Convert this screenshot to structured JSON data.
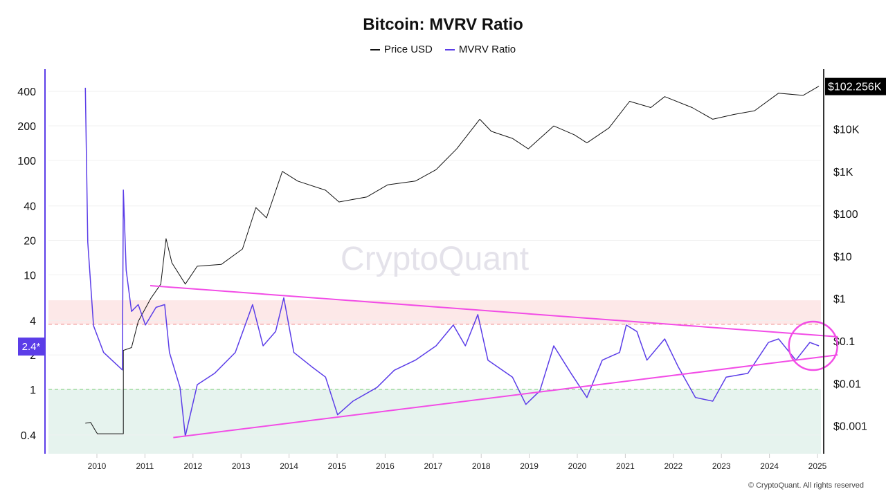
{
  "chart_data": {
    "type": "line",
    "title": "Bitcoin: MVRV Ratio",
    "watermark": "CryptoQuant",
    "footer": "© CryptoQuant. All rights reserved",
    "legend_position": "top-center",
    "grid": true,
    "x_ticks": [
      "2010",
      "2011",
      "2012",
      "2013",
      "2014",
      "2015",
      "2016",
      "2017",
      "2018",
      "2019",
      "2020",
      "2021",
      "2022",
      "2023",
      "2024",
      "2025"
    ],
    "left_axis": {
      "scale": "log",
      "ticks": [
        "400",
        "200",
        "100",
        "40",
        "20",
        "10",
        "4",
        "2",
        "1",
        "0.4"
      ],
      "tick_values": [
        400,
        200,
        100,
        40,
        20,
        10,
        4,
        2,
        1,
        0.4
      ],
      "current_label": "2.4*",
      "color": "#5b3de8"
    },
    "right_axis": {
      "scale": "log",
      "ticks": [
        "$10K",
        "$1K",
        "$100",
        "$10",
        "$1",
        "$0.1",
        "$0.01",
        "$0.001"
      ],
      "tick_values": [
        10000,
        1000,
        100,
        10,
        1,
        0.1,
        0.01,
        0.001
      ],
      "current_label": "$102.256K",
      "color": "#000000"
    },
    "zones": {
      "overvalued_band": [
        3.7,
        6.0
      ],
      "overvalued_line": 3.7,
      "undervalued_line": 1,
      "overvalued_color": "#fde8e8",
      "undervalued_color": "#e6f3ee"
    },
    "series": [
      {
        "name": "Price USD",
        "axis": "right",
        "color": "#111111",
        "x": [
          2009.76,
          2009.87,
          2009.96,
          2010.01,
          2010.55,
          2010.55,
          2010.72,
          2010.86,
          2011.12,
          2011.33,
          2011.44,
          2011.56,
          2011.84,
          2012.09,
          2012.59,
          2013.03,
          2013.31,
          2013.53,
          2013.86,
          2014.18,
          2014.76,
          2015.04,
          2015.62,
          2016.05,
          2016.63,
          2017.06,
          2017.49,
          2017.97,
          2018.21,
          2018.65,
          2018.98,
          2019.51,
          2019.94,
          2020.2,
          2020.66,
          2021.09,
          2021.53,
          2021.82,
          2022.39,
          2022.82,
          2023.26,
          2023.69,
          2024.19,
          2024.7,
          2025.03
        ],
        "y": [
          0.00115,
          0.0012,
          0.0008,
          0.00065,
          0.00065,
          0.06,
          0.07,
          0.29,
          1,
          2.2,
          26,
          7,
          2.2,
          5.8,
          6.4,
          14.8,
          140,
          80,
          1000,
          590,
          360,
          190,
          250,
          480,
          590,
          1100,
          3400,
          17000,
          8800,
          6000,
          3400,
          11800,
          7300,
          4700,
          10600,
          45000,
          32000,
          58000,
          32000,
          17000,
          22000,
          27000,
          70000,
          62000,
          102256
        ]
      },
      {
        "name": "MVRV Ratio",
        "axis": "left",
        "color": "#5b3de8",
        "x": [
          2009.76,
          2009.81,
          2009.93,
          2010.14,
          2010.53,
          2010.55,
          2010.61,
          2010.72,
          2010.86,
          2011.01,
          2011.23,
          2011.41,
          2011.51,
          2011.73,
          2011.84,
          2012.09,
          2012.45,
          2012.88,
          2013.24,
          2013.46,
          2013.72,
          2013.89,
          2014.1,
          2014.47,
          2014.76,
          2015.01,
          2015.33,
          2015.83,
          2016.19,
          2016.63,
          2017.06,
          2017.42,
          2017.67,
          2017.93,
          2018.14,
          2018.65,
          2018.93,
          2019.22,
          2019.51,
          2019.87,
          2020.2,
          2020.52,
          2020.88,
          2021.02,
          2021.24,
          2021.45,
          2021.82,
          2022.1,
          2022.46,
          2022.82,
          2023.1,
          2023.55,
          2023.98,
          2024.19,
          2024.55,
          2024.84,
          2025.03
        ],
        "y": [
          430,
          19.3,
          3.6,
          2.1,
          1.48,
          55,
          11,
          4.8,
          5.5,
          3.65,
          5.2,
          5.5,
          2.1,
          1.04,
          0.39,
          1.1,
          1.38,
          2.1,
          5.5,
          2.4,
          3.2,
          6.3,
          2.1,
          1.58,
          1.28,
          0.6,
          0.79,
          1.04,
          1.47,
          1.8,
          2.4,
          3.65,
          2.4,
          4.5,
          1.8,
          1.28,
          0.74,
          0.97,
          2.4,
          1.38,
          0.85,
          1.8,
          2.1,
          3.65,
          3.2,
          1.8,
          2.76,
          1.58,
          0.85,
          0.79,
          1.28,
          1.38,
          2.57,
          2.76,
          1.8,
          2.57,
          2.4
        ]
      }
    ],
    "annotations": {
      "trendlines": [
        {
          "x": [
            2011.11,
            2025.42
          ],
          "y": [
            8.05,
            2.88
          ],
          "color": "#f24ce6"
        },
        {
          "x": [
            2011.59,
            2025.42
          ],
          "y": [
            0.38,
            2.0
          ],
          "color": "#f24ce6"
        }
      ],
      "circle": {
        "x": 2024.91,
        "y": 2.4,
        "color": "#f24ce6"
      }
    }
  }
}
